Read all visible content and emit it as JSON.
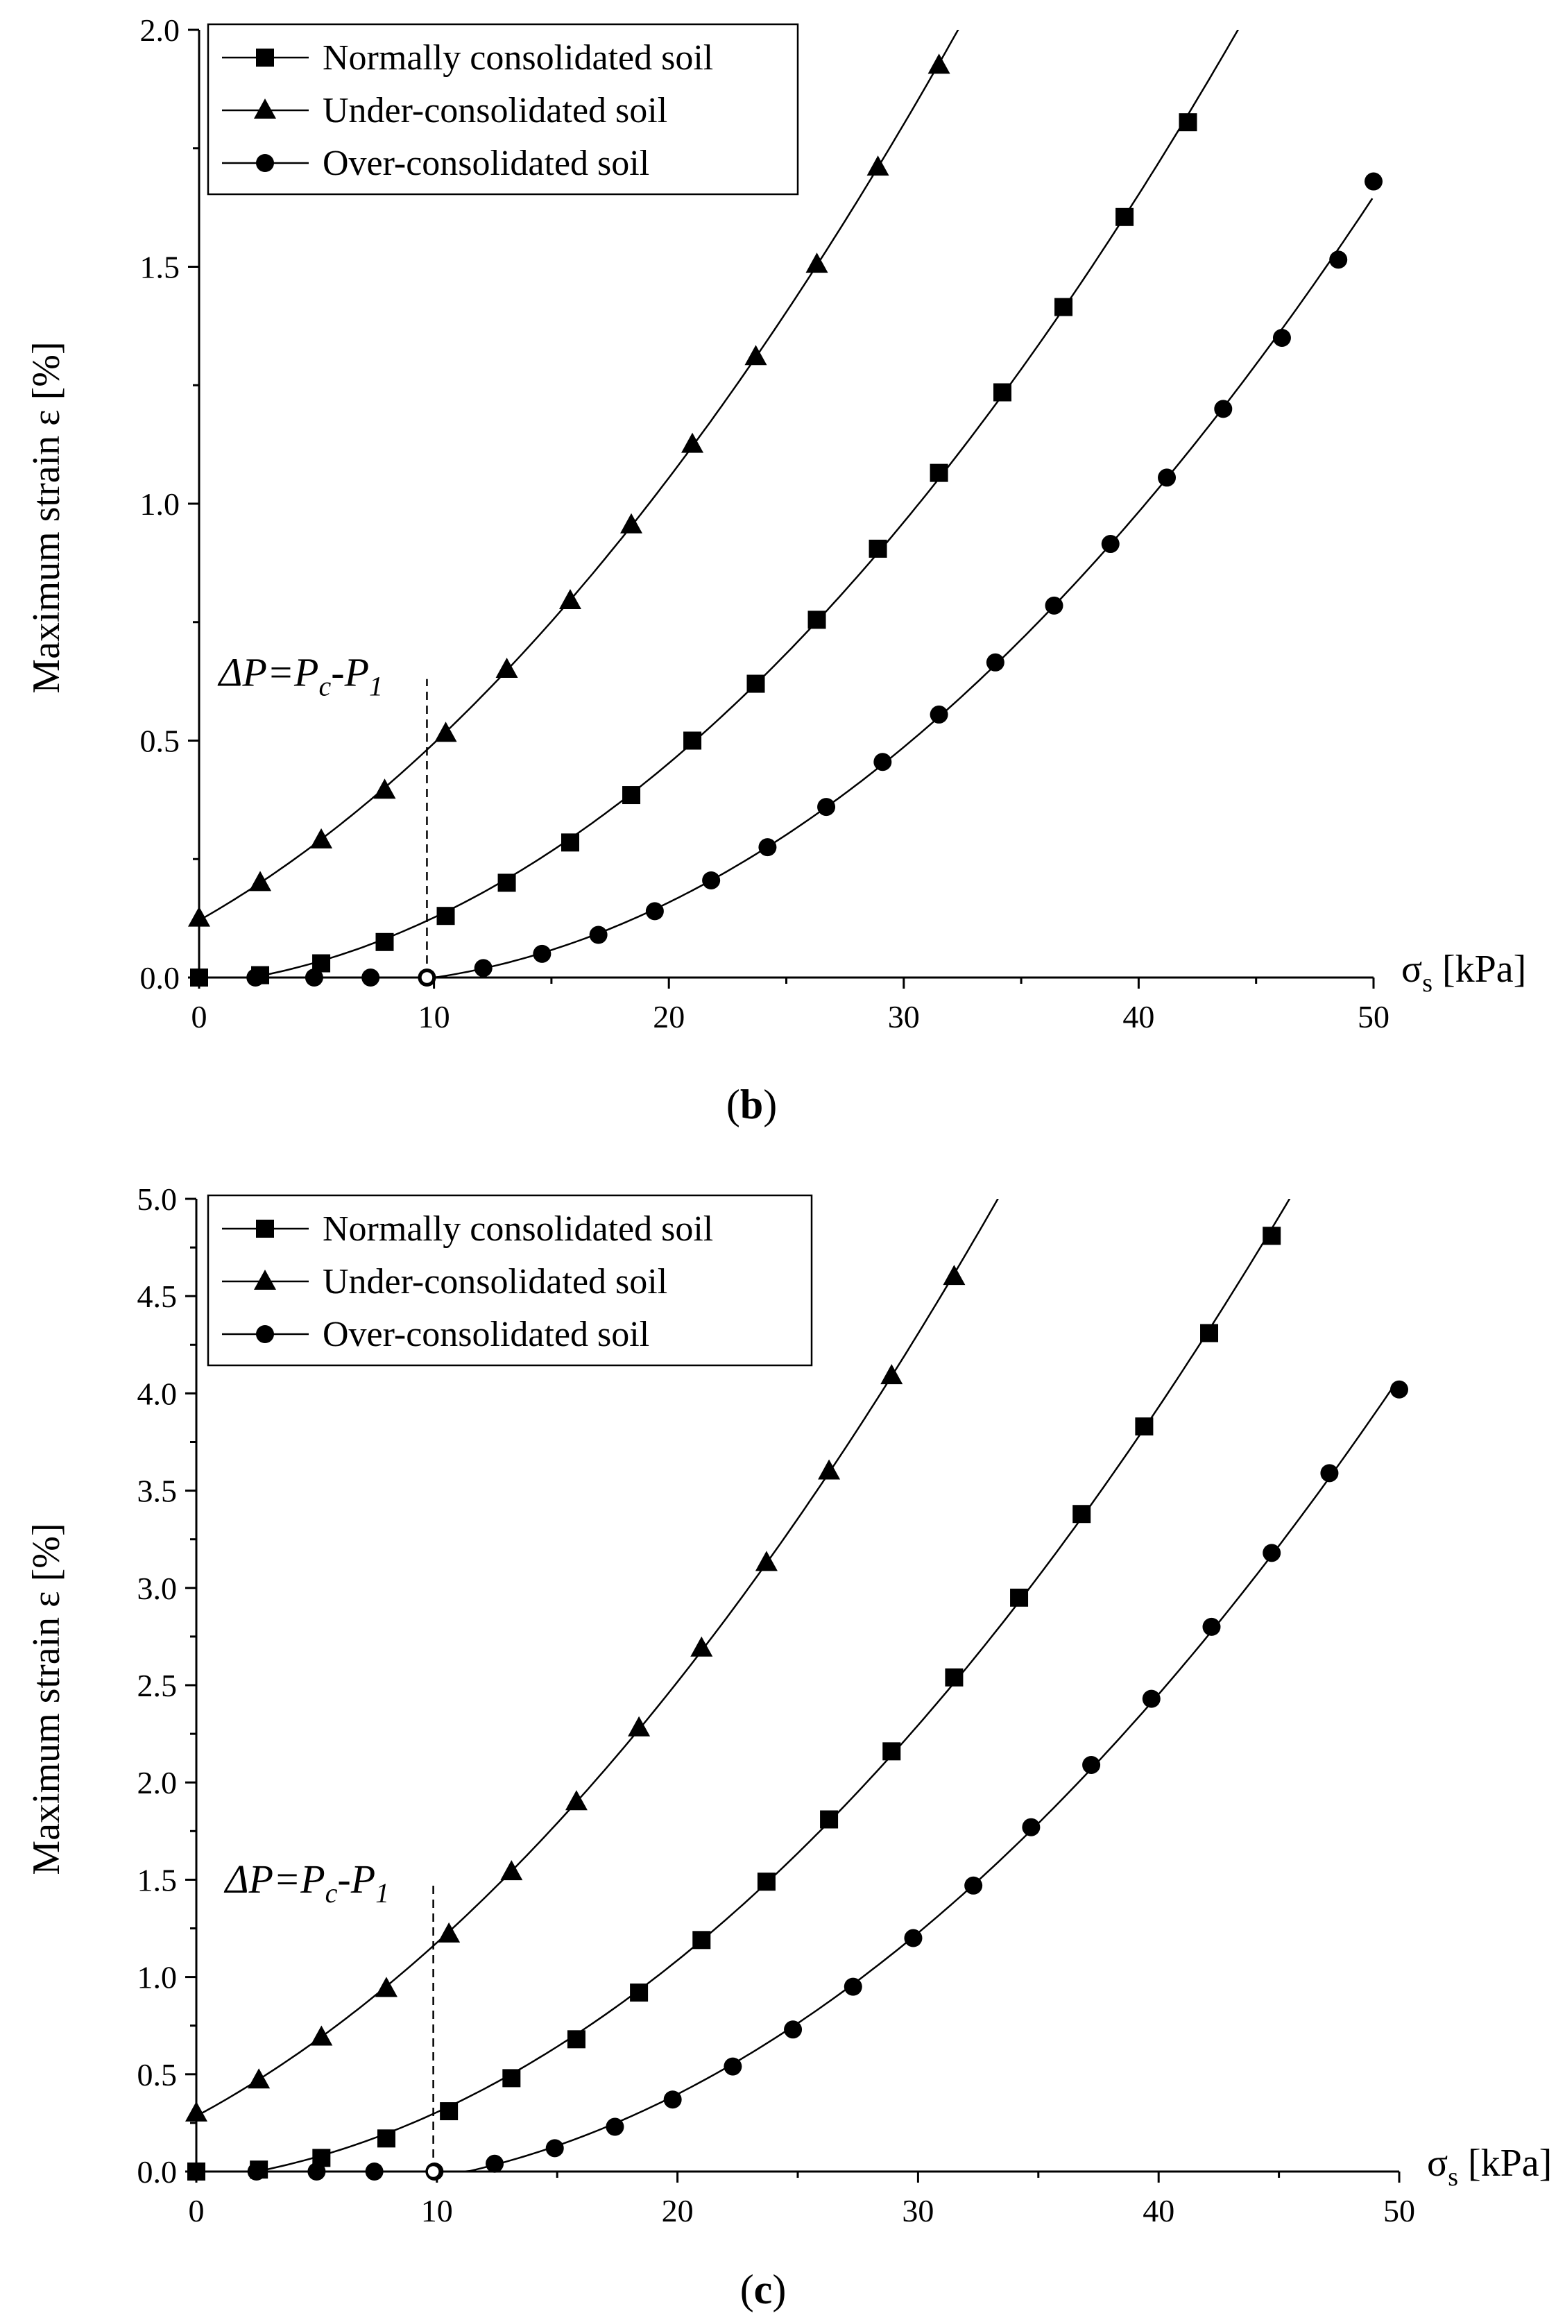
{
  "chart_data": [
    {
      "type": "line",
      "panel_label": "b",
      "xlabel": "σ",
      "xlabel_sub": "s",
      "xlabel_unit": " [kPa]",
      "ylabel": "Maximum strain ε [%]",
      "xlim": [
        0,
        50
      ],
      "ylim": [
        0,
        2.0
      ],
      "x_ticks": [
        0,
        10,
        20,
        30,
        40,
        50
      ],
      "y_ticks": [
        "0.0",
        "0.5",
        "1.0",
        "1.5",
        "2.0"
      ],
      "grid": false,
      "legend_position": "top-left",
      "series": [
        {
          "name": "Normally consolidated soil",
          "marker": "square",
          "x": [
            0,
            2.6,
            5.2,
            7.9,
            10.5,
            13.1,
            15.8,
            18.4,
            21.0,
            23.7,
            26.3,
            28.9,
            31.5,
            34.2,
            36.8,
            39.4,
            42.1
          ],
          "y": [
            0.0,
            0.005,
            0.03,
            0.075,
            0.13,
            0.2,
            0.285,
            0.385,
            0.5,
            0.62,
            0.755,
            0.905,
            1.065,
            1.235,
            1.415,
            1.605,
            1.805
          ]
        },
        {
          "name": "Under-consolidated soil",
          "marker": "triangle",
          "x": [
            0,
            2.6,
            5.2,
            7.9,
            10.5,
            13.1,
            15.8,
            18.4,
            21.0,
            23.7,
            26.3,
            28.9,
            31.5
          ],
          "y": [
            0.125,
            0.2,
            0.29,
            0.395,
            0.515,
            0.65,
            0.795,
            0.955,
            1.125,
            1.31,
            1.505,
            1.71,
            1.925
          ]
        },
        {
          "name": "Over-consolidated soil",
          "marker": "circle",
          "x": [
            0,
            2.4,
            4.9,
            7.3,
            9.7,
            12.1,
            14.6,
            17.0,
            19.4,
            21.8,
            24.2,
            26.7,
            29.1,
            31.5,
            33.9,
            36.4,
            38.8,
            41.2,
            43.6,
            46.1,
            48.5,
            50.0
          ],
          "y": [
            0.0,
            0.0,
            0.0,
            0.0,
            0.0,
            0.02,
            0.05,
            0.09,
            0.14,
            0.205,
            0.275,
            0.36,
            0.455,
            0.555,
            0.665,
            0.785,
            0.915,
            1.055,
            1.2,
            1.35,
            1.515,
            1.68
          ]
        }
      ],
      "annotation": {
        "text_a": "ΔP=P",
        "sub_c": "c",
        "text_b": "-P",
        "sub_1": "1",
        "x": 9.7,
        "y_top": 0.63
      }
    },
    {
      "type": "line",
      "panel_label": "c",
      "xlabel": "σ",
      "xlabel_sub": "s",
      "xlabel_unit": " [kPa]",
      "ylabel": "Maximum strain ε [%]",
      "xlim": [
        0,
        50
      ],
      "ylim": [
        0,
        5.0
      ],
      "x_ticks": [
        0,
        10,
        20,
        30,
        40,
        50
      ],
      "y_ticks": [
        "0.0",
        "0.5",
        "1.0",
        "1.5",
        "2.0",
        "2.5",
        "3.0",
        "3.5",
        "4.0",
        "4.5",
        "5.0"
      ],
      "grid": false,
      "legend_position": "top-left",
      "series": [
        {
          "name": "Normally consolidated soil",
          "marker": "square",
          "x": [
            0,
            2.6,
            5.2,
            7.9,
            10.5,
            13.1,
            15.8,
            18.4,
            21.0,
            23.7,
            26.3,
            28.9,
            31.5,
            34.2,
            36.8,
            39.4,
            42.1,
            44.7
          ],
          "y": [
            0.0,
            0.01,
            0.07,
            0.17,
            0.31,
            0.48,
            0.68,
            0.92,
            1.19,
            1.49,
            1.81,
            2.16,
            2.54,
            2.95,
            3.38,
            3.83,
            4.31,
            4.81
          ]
        },
        {
          "name": "Under-consolidated soil",
          "marker": "triangle",
          "x": [
            0,
            2.6,
            5.2,
            7.9,
            10.5,
            13.1,
            15.8,
            18.4,
            21.0,
            23.7,
            26.3,
            28.9,
            31.5
          ],
          "y": [
            0.3,
            0.47,
            0.69,
            0.94,
            1.22,
            1.54,
            1.9,
            2.28,
            2.69,
            3.13,
            3.6,
            4.09,
            4.6
          ]
        },
        {
          "name": "Over-consolidated soil",
          "marker": "circle",
          "x": [
            0,
            2.5,
            5.0,
            7.4,
            9.9,
            12.4,
            14.9,
            17.4,
            19.8,
            22.3,
            24.8,
            27.3,
            29.8,
            32.3,
            34.7,
            37.2,
            39.7,
            42.2,
            44.7,
            47.1,
            50.0
          ],
          "y": [
            0.0,
            0.0,
            0.0,
            0.0,
            0.0,
            0.04,
            0.12,
            0.23,
            0.37,
            0.54,
            0.73,
            0.95,
            1.2,
            1.47,
            1.77,
            2.09,
            2.43,
            2.8,
            3.18,
            3.59,
            4.02
          ]
        }
      ],
      "annotation": {
        "text_a": "ΔP=P",
        "sub_c": "c",
        "text_b": "-P",
        "sub_1": "1",
        "x": 9.85,
        "y_top": 1.47
      }
    }
  ]
}
